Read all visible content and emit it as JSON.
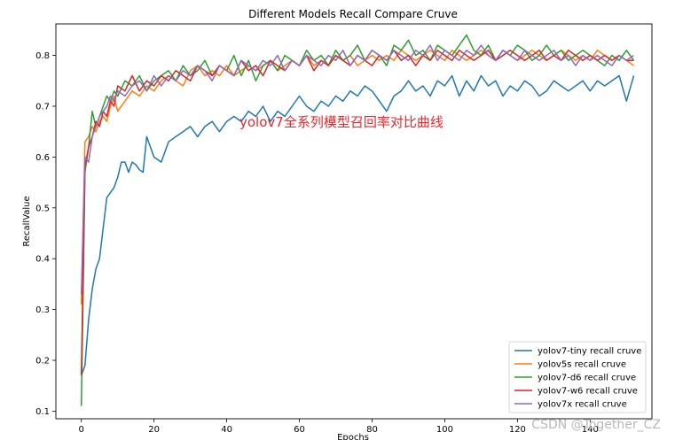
{
  "chart_data": {
    "type": "line",
    "title": "Different Models Recall Compare Cruve",
    "xlabel": "Epochs",
    "ylabel": "RecallValue",
    "xlim": [
      -7,
      157
    ],
    "ylim": [
      0.085,
      0.862
    ],
    "xticks": [
      0,
      20,
      40,
      60,
      80,
      100,
      120,
      140
    ],
    "yticks": [
      0.1,
      0.2,
      0.3,
      0.4,
      0.5,
      0.6,
      0.7,
      0.8
    ],
    "grid": false,
    "legend_position": "lower-right",
    "annotation": "yolov7全系列模型召回率对比曲线",
    "series": [
      {
        "name": "yolov7-tiny recall cruve",
        "color": "#1f77b4",
        "x": [
          0,
          1,
          2,
          3,
          4,
          5,
          6,
          7,
          8,
          9,
          10,
          11,
          12,
          13,
          14,
          15,
          16,
          17,
          18,
          19,
          20,
          22,
          24,
          26,
          28,
          30,
          32,
          34,
          36,
          38,
          40,
          42,
          44,
          46,
          48,
          50,
          52,
          54,
          56,
          58,
          60,
          62,
          64,
          66,
          68,
          70,
          72,
          74,
          76,
          78,
          80,
          82,
          84,
          86,
          88,
          90,
          92,
          94,
          96,
          98,
          100,
          102,
          104,
          106,
          108,
          110,
          112,
          114,
          116,
          118,
          120,
          122,
          124,
          126,
          128,
          130,
          132,
          134,
          136,
          138,
          140,
          142,
          144,
          146,
          148,
          150,
          152
        ],
        "values": [
          0.17,
          0.19,
          0.28,
          0.34,
          0.38,
          0.4,
          0.46,
          0.52,
          0.53,
          0.54,
          0.56,
          0.59,
          0.59,
          0.57,
          0.59,
          0.585,
          0.575,
          0.57,
          0.64,
          0.62,
          0.6,
          0.59,
          0.63,
          0.64,
          0.65,
          0.66,
          0.64,
          0.66,
          0.67,
          0.65,
          0.67,
          0.68,
          0.67,
          0.69,
          0.68,
          0.7,
          0.67,
          0.69,
          0.68,
          0.7,
          0.72,
          0.7,
          0.69,
          0.71,
          0.7,
          0.72,
          0.71,
          0.73,
          0.72,
          0.74,
          0.73,
          0.71,
          0.69,
          0.72,
          0.73,
          0.75,
          0.73,
          0.74,
          0.72,
          0.75,
          0.74,
          0.76,
          0.72,
          0.75,
          0.73,
          0.76,
          0.74,
          0.75,
          0.72,
          0.74,
          0.73,
          0.75,
          0.74,
          0.72,
          0.73,
          0.75,
          0.74,
          0.73,
          0.74,
          0.75,
          0.73,
          0.75,
          0.74,
          0.75,
          0.76,
          0.71,
          0.76
        ]
      },
      {
        "name": "yolov5s recall cruve",
        "color": "#ff7f0e",
        "x": [
          0,
          1,
          2,
          3,
          4,
          5,
          6,
          7,
          8,
          9,
          10,
          12,
          14,
          16,
          18,
          20,
          22,
          24,
          26,
          28,
          30,
          32,
          34,
          36,
          38,
          40,
          42,
          44,
          46,
          48,
          50,
          52,
          54,
          56,
          58,
          60,
          62,
          64,
          66,
          68,
          70,
          72,
          74,
          76,
          78,
          80,
          82,
          84,
          86,
          88,
          90,
          92,
          94,
          96,
          98,
          100,
          102,
          104,
          106,
          108,
          110,
          112,
          114,
          116,
          118,
          120,
          122,
          124,
          126,
          128,
          130,
          132,
          134,
          136,
          138,
          140,
          142,
          144,
          146,
          148,
          150,
          152
        ],
        "values": [
          0.31,
          0.63,
          0.64,
          0.66,
          0.65,
          0.67,
          0.68,
          0.67,
          0.7,
          0.72,
          0.69,
          0.71,
          0.73,
          0.72,
          0.74,
          0.73,
          0.75,
          0.76,
          0.75,
          0.74,
          0.77,
          0.78,
          0.76,
          0.77,
          0.76,
          0.78,
          0.76,
          0.77,
          0.78,
          0.77,
          0.78,
          0.79,
          0.77,
          0.78,
          0.79,
          0.78,
          0.8,
          0.78,
          0.79,
          0.78,
          0.8,
          0.79,
          0.8,
          0.78,
          0.79,
          0.8,
          0.79,
          0.8,
          0.79,
          0.81,
          0.8,
          0.79,
          0.8,
          0.81,
          0.8,
          0.79,
          0.81,
          0.8,
          0.79,
          0.8,
          0.81,
          0.8,
          0.79,
          0.81,
          0.8,
          0.79,
          0.8,
          0.81,
          0.8,
          0.79,
          0.8,
          0.81,
          0.8,
          0.79,
          0.8,
          0.79,
          0.81,
          0.8,
          0.79,
          0.8,
          0.79,
          0.78
        ]
      },
      {
        "name": "yolov7-d6 recall cruve",
        "color": "#2ca02c",
        "x": [
          0,
          1,
          2,
          3,
          4,
          5,
          6,
          7,
          8,
          9,
          10,
          12,
          14,
          16,
          18,
          20,
          22,
          24,
          26,
          28,
          30,
          32,
          34,
          36,
          38,
          40,
          42,
          44,
          46,
          48,
          50,
          52,
          54,
          56,
          58,
          60,
          62,
          64,
          66,
          68,
          70,
          72,
          74,
          76,
          78,
          80,
          82,
          84,
          86,
          88,
          90,
          92,
          94,
          96,
          98,
          100,
          102,
          104,
          106,
          108,
          110,
          112,
          114,
          116,
          118,
          120,
          122,
          124,
          126,
          128,
          130,
          132,
          134,
          136,
          138,
          140,
          142,
          144,
          146,
          148,
          150,
          152
        ],
        "values": [
          0.11,
          0.57,
          0.62,
          0.69,
          0.66,
          0.68,
          0.7,
          0.72,
          0.71,
          0.73,
          0.72,
          0.75,
          0.74,
          0.76,
          0.73,
          0.75,
          0.76,
          0.77,
          0.75,
          0.78,
          0.76,
          0.77,
          0.79,
          0.76,
          0.78,
          0.77,
          0.8,
          0.76,
          0.79,
          0.75,
          0.78,
          0.79,
          0.77,
          0.8,
          0.79,
          0.78,
          0.81,
          0.79,
          0.8,
          0.78,
          0.81,
          0.79,
          0.8,
          0.82,
          0.79,
          0.81,
          0.8,
          0.78,
          0.82,
          0.81,
          0.83,
          0.8,
          0.81,
          0.79,
          0.82,
          0.81,
          0.8,
          0.82,
          0.84,
          0.81,
          0.8,
          0.82,
          0.79,
          0.81,
          0.8,
          0.82,
          0.81,
          0.79,
          0.8,
          0.82,
          0.8,
          0.81,
          0.79,
          0.8,
          0.81,
          0.8,
          0.79,
          0.78,
          0.8,
          0.79,
          0.81,
          0.79
        ]
      },
      {
        "name": "yolov7-w6 recall cruve",
        "color": "#d62728",
        "x": [
          0,
          1,
          2,
          3,
          4,
          5,
          6,
          7,
          8,
          9,
          10,
          12,
          14,
          16,
          18,
          20,
          22,
          24,
          26,
          28,
          30,
          32,
          34,
          36,
          38,
          40,
          42,
          44,
          46,
          48,
          50,
          52,
          54,
          56,
          58,
          60,
          62,
          64,
          66,
          68,
          70,
          72,
          74,
          76,
          78,
          80,
          82,
          84,
          86,
          88,
          90,
          92,
          94,
          96,
          98,
          100,
          102,
          104,
          106,
          108,
          110,
          112,
          114,
          116,
          118,
          120,
          122,
          124,
          126,
          128,
          130,
          132,
          134,
          136,
          138,
          140,
          142,
          144,
          146,
          148,
          150,
          152
        ],
        "values": [
          0.17,
          0.58,
          0.62,
          0.64,
          0.67,
          0.66,
          0.69,
          0.68,
          0.71,
          0.7,
          0.74,
          0.73,
          0.76,
          0.73,
          0.75,
          0.74,
          0.76,
          0.75,
          0.77,
          0.76,
          0.75,
          0.78,
          0.77,
          0.76,
          0.78,
          0.77,
          0.76,
          0.79,
          0.77,
          0.78,
          0.76,
          0.79,
          0.78,
          0.77,
          0.79,
          0.78,
          0.8,
          0.77,
          0.79,
          0.78,
          0.8,
          0.79,
          0.78,
          0.8,
          0.79,
          0.78,
          0.8,
          0.79,
          0.81,
          0.79,
          0.8,
          0.78,
          0.8,
          0.79,
          0.81,
          0.8,
          0.79,
          0.81,
          0.8,
          0.79,
          0.8,
          0.81,
          0.79,
          0.8,
          0.81,
          0.8,
          0.79,
          0.8,
          0.81,
          0.79,
          0.8,
          0.79,
          0.81,
          0.8,
          0.79,
          0.8,
          0.79,
          0.8,
          0.79,
          0.8,
          0.79,
          0.79
        ]
      },
      {
        "name": "yolov7x recall cruve",
        "color": "#9467bd",
        "x": [
          0,
          1,
          2,
          3,
          4,
          5,
          6,
          7,
          8,
          9,
          10,
          12,
          14,
          16,
          18,
          20,
          22,
          24,
          26,
          28,
          30,
          32,
          34,
          36,
          38,
          40,
          42,
          44,
          46,
          48,
          50,
          52,
          54,
          56,
          58,
          60,
          62,
          64,
          66,
          68,
          70,
          72,
          74,
          76,
          78,
          80,
          82,
          84,
          86,
          88,
          90,
          92,
          94,
          96,
          98,
          100,
          102,
          104,
          106,
          108,
          110,
          112,
          114,
          116,
          118,
          120,
          122,
          124,
          126,
          128,
          130,
          132,
          134,
          136,
          138,
          140,
          142,
          144,
          146,
          148,
          150,
          152
        ],
        "values": [
          0.33,
          0.6,
          0.59,
          0.64,
          0.66,
          0.68,
          0.69,
          0.7,
          0.72,
          0.71,
          0.73,
          0.72,
          0.74,
          0.75,
          0.73,
          0.76,
          0.74,
          0.76,
          0.75,
          0.77,
          0.76,
          0.78,
          0.77,
          0.75,
          0.78,
          0.77,
          0.76,
          0.79,
          0.78,
          0.77,
          0.79,
          0.78,
          0.8,
          0.77,
          0.79,
          0.78,
          0.8,
          0.79,
          0.78,
          0.8,
          0.79,
          0.81,
          0.78,
          0.8,
          0.79,
          0.81,
          0.8,
          0.79,
          0.81,
          0.8,
          0.79,
          0.81,
          0.8,
          0.82,
          0.79,
          0.81,
          0.8,
          0.79,
          0.81,
          0.8,
          0.82,
          0.8,
          0.79,
          0.81,
          0.8,
          0.79,
          0.81,
          0.8,
          0.79,
          0.8,
          0.81,
          0.79,
          0.8,
          0.78,
          0.8,
          0.79,
          0.8,
          0.79,
          0.78,
          0.8,
          0.79,
          0.8
        ]
      }
    ]
  },
  "watermark": "CSDN @Together_CZ"
}
